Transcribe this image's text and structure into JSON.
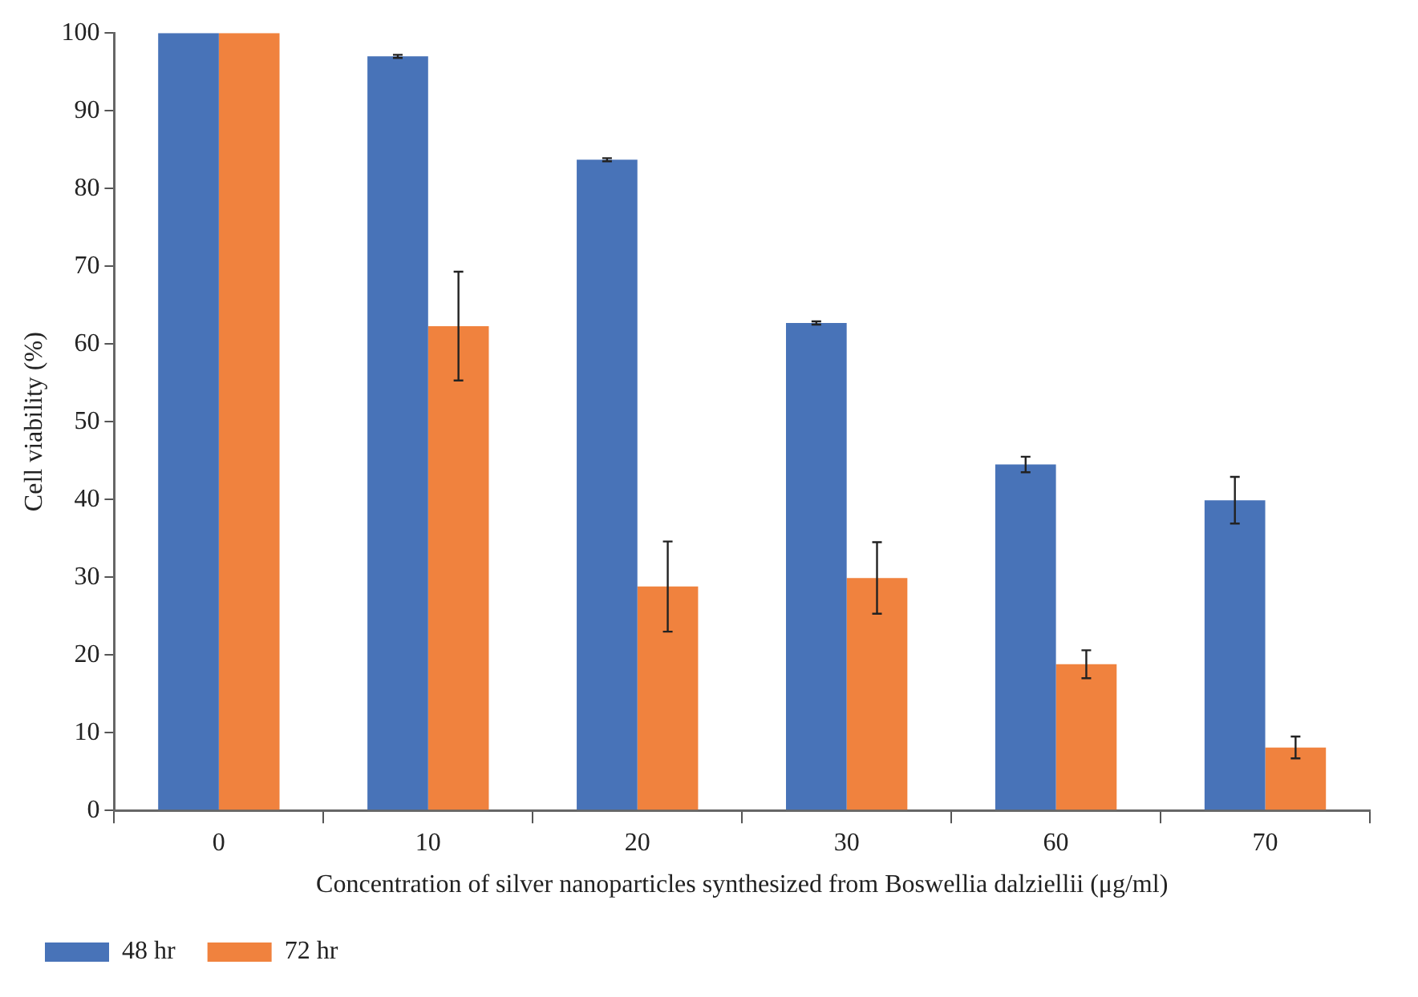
{
  "chart_data": {
    "type": "bar",
    "xlabel": "Concentration of silver nanoparticles synthesized from Boswellia dalziellii (μg/ml)",
    "ylabel": "Cell viability (%)",
    "categories": [
      "0",
      "10",
      "20",
      "30",
      "60",
      "70"
    ],
    "series": [
      {
        "name": "48 hr",
        "color": "#4873b8",
        "values": [
          100,
          97.0,
          83.7,
          62.7,
          44.5,
          39.9
        ],
        "errors": [
          null,
          0.2,
          0.2,
          0.2,
          1.0,
          3.0
        ]
      },
      {
        "name": "72 hr",
        "color": "#f0823e",
        "values": [
          100,
          62.3,
          28.8,
          29.9,
          18.8,
          8.1
        ],
        "errors": [
          null,
          7.0,
          5.8,
          4.6,
          1.8,
          1.4
        ]
      }
    ],
    "ylim": [
      0,
      100
    ],
    "yticks": [
      0,
      10,
      20,
      30,
      40,
      50,
      60,
      70,
      80,
      90,
      100
    ],
    "grid": false,
    "legend": "bottom left"
  }
}
